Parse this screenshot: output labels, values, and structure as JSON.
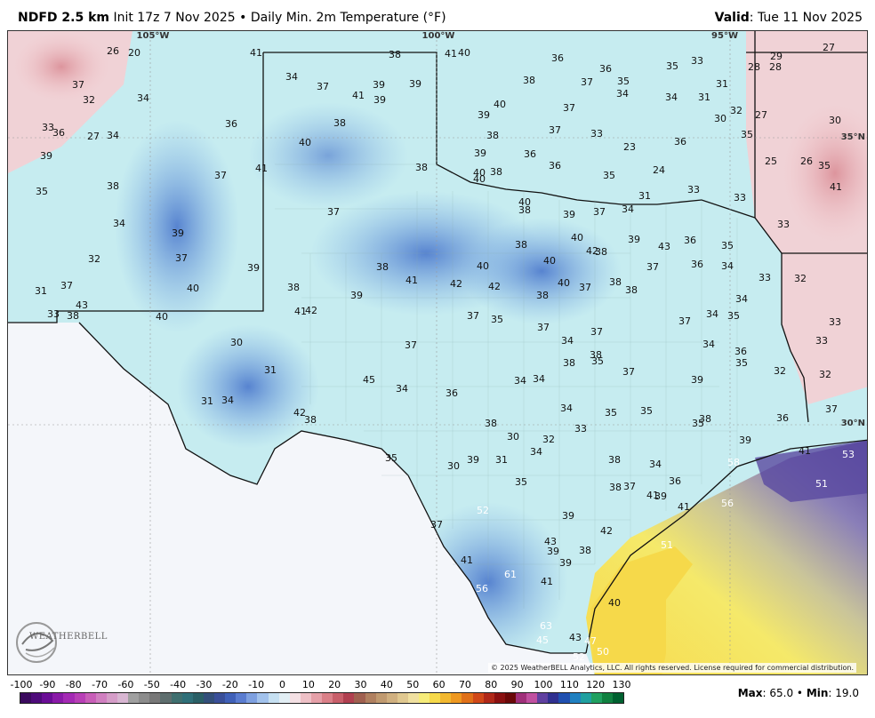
{
  "header": {
    "product": "NDFD 2.5 km",
    "init": "Init 17z 7 Nov 2025",
    "separator": "•",
    "field": "Daily Min. 2m Temperature (°F)",
    "valid_label": "Valid",
    "valid_date": "Tue 11 Nov 2025"
  },
  "map": {
    "lon_labels": [
      "105°W",
      "100°W",
      "95°W"
    ],
    "lat_labels": [
      "35°N",
      "30°N"
    ],
    "colors": {
      "cold_blue": "#3f6fc6",
      "mid_blue": "#7fb0e6",
      "light_cyan": "#c6ecf0",
      "pale": "#e8f4f6",
      "pink": "#f2c8cc",
      "red": "#d98a93",
      "purple": "#5a4aa0",
      "tan": "#c9c49a",
      "yellow": "#f5e96a",
      "gold": "#f6d94a",
      "outside": "#f4f6fa"
    },
    "values": [
      "26",
      "20",
      "37",
      "32",
      "34",
      "41",
      "38",
      "34",
      "37",
      "41",
      "39",
      "39",
      "40",
      "36",
      "36",
      "35",
      "33",
      "28",
      "28",
      "29",
      "27",
      "33",
      "36",
      "27",
      "34",
      "36",
      "39",
      "41",
      "38",
      "39",
      "40",
      "38",
      "37",
      "35",
      "34",
      "34",
      "31",
      "31",
      "32",
      "27",
      "30",
      "39",
      "40",
      "38",
      "37",
      "33",
      "30",
      "35",
      "23",
      "25",
      "26",
      "35",
      "36",
      "35",
      "38",
      "37",
      "41",
      "38",
      "39",
      "40",
      "37",
      "36",
      "36",
      "35",
      "24",
      "41",
      "34",
      "39",
      "37",
      "40",
      "40",
      "38",
      "38",
      "39",
      "37",
      "34",
      "31",
      "33",
      "33",
      "32",
      "37",
      "39",
      "38",
      "40",
      "42",
      "40",
      "39",
      "38",
      "43",
      "36",
      "35",
      "33",
      "31",
      "37",
      "40",
      "40",
      "38",
      "41",
      "42",
      "42",
      "40",
      "37",
      "38",
      "38",
      "37",
      "36",
      "34",
      "33",
      "32",
      "33",
      "38",
      "40",
      "43",
      "38",
      "39",
      "41",
      "42",
      "38",
      "37",
      "34",
      "35",
      "34",
      "33",
      "30",
      "37",
      "37",
      "35",
      "34",
      "37",
      "37",
      "38",
      "34",
      "33",
      "31",
      "45",
      "34",
      "36",
      "34",
      "34",
      "35",
      "38",
      "39",
      "36",
      "32",
      "31",
      "34",
      "42",
      "38",
      "38",
      "30",
      "32",
      "34",
      "35",
      "35",
      "37",
      "35",
      "32",
      "36",
      "37",
      "35",
      "39",
      "31",
      "34",
      "38",
      "33",
      "35",
      "38",
      "39",
      "30",
      "35",
      "34",
      "36",
      "38",
      "37",
      "39",
      "41",
      "53",
      "52",
      "39",
      "37",
      "41",
      "41",
      "56",
      "58",
      "51",
      "56",
      "41",
      "43",
      "39",
      "39",
      "38",
      "42",
      "51",
      "61",
      "41",
      "40",
      "63",
      "43",
      "45",
      "47",
      "50",
      "52",
      "56"
    ]
  },
  "footer": {
    "colorbar_ticks": [
      "-100",
      "-90",
      "-80",
      "-70",
      "-60",
      "-50",
      "-40",
      "-30",
      "-20",
      "-10",
      "0",
      "10",
      "20",
      "30",
      "40",
      "50",
      "60",
      "70",
      "80",
      "90",
      "100",
      "110",
      "120",
      "130"
    ],
    "max_label": "Max",
    "max_value": "65.0",
    "min_label": "Min",
    "min_value": "19.0",
    "copyright": "© 2025 WeatherBELL Analytics, LLC. All rights reserved. License required for commercial distribution.",
    "logo_text": "WEATHERBELL"
  }
}
